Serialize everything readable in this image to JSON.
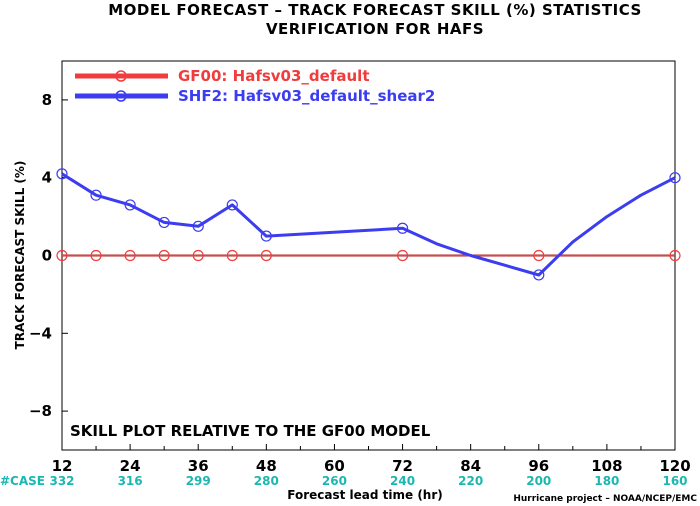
{
  "chart_data": {
    "type": "line",
    "title_line1": "MODEL FORECAST – TRACK FORECAST SKILL (%) STATISTICS",
    "title_line2": "VERIFICATION FOR HAFS",
    "xlabel": "Forecast lead time (hr)",
    "ylabel": "TRACK FORECAST SKILL (%)",
    "xlim": [
      12,
      120
    ],
    "ylim": [
      -10,
      10
    ],
    "x_ticks": [
      12,
      24,
      36,
      48,
      60,
      72,
      84,
      96,
      108,
      120
    ],
    "y_ticks": [
      8,
      4,
      0,
      -4,
      -8
    ],
    "case_label": "#CASE",
    "case_counts": [
      "332",
      "316",
      "299",
      "280",
      "260",
      "240",
      "220",
      "200",
      "180",
      "160"
    ],
    "annotation": "SKILL PLOT RELATIVE TO THE GF00 MODEL",
    "credit": "Hurricane project – NOAA/NCEP/EMC",
    "grid": false,
    "legend_position": "top-left",
    "series": [
      {
        "name": "GF00: Hafsv03_default",
        "color": "#f03c3c",
        "x": [
          12,
          18,
          24,
          30,
          36,
          42,
          48,
          72,
          96,
          120
        ],
        "y": [
          0,
          0,
          0,
          0,
          0,
          0,
          0,
          0,
          0,
          0
        ],
        "markers": [
          true,
          true,
          true,
          true,
          true,
          true,
          true,
          true,
          true,
          true
        ]
      },
      {
        "name": "SHF2: Hafsv03_default_shear2",
        "color": "#3c3cf0",
        "x": [
          12,
          18,
          24,
          30,
          36,
          42,
          48,
          72,
          78,
          84,
          90,
          96,
          102,
          108,
          114,
          120
        ],
        "y": [
          4.2,
          3.1,
          2.6,
          1.7,
          1.5,
          2.6,
          1.0,
          1.4,
          0.6,
          0.0,
          -0.5,
          -1.0,
          0.7,
          2.0,
          3.1,
          4.0
        ],
        "markers": [
          true,
          true,
          true,
          true,
          true,
          true,
          true,
          true,
          false,
          false,
          false,
          true,
          false,
          false,
          false,
          true
        ]
      }
    ]
  }
}
